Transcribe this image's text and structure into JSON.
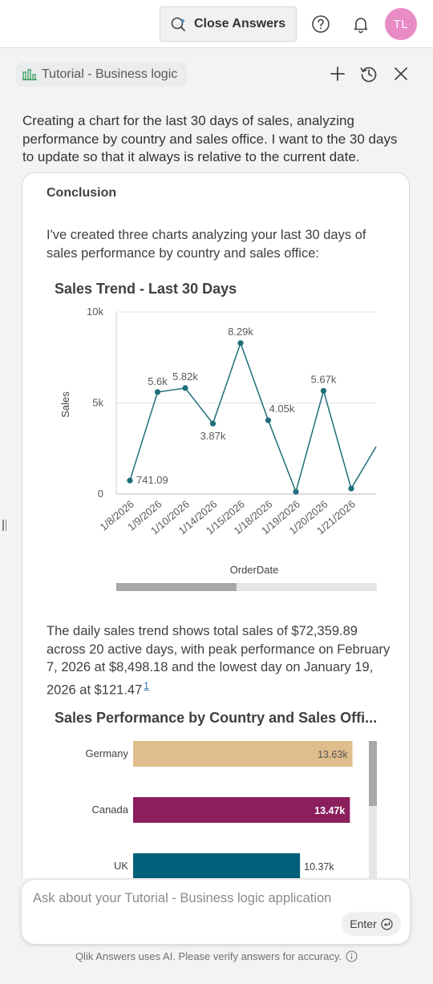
{
  "topbar": {
    "close_answers_label": "Close Answers",
    "avatar_initials": "TL"
  },
  "panel": {
    "app_name": "Tutorial - Business logic"
  },
  "conversation": {
    "question": "Creating a chart for the last 30 days of sales, analyzing performance by country and sales office. I want to the 30 days to update so that it always is relative to the current date.",
    "answer": {
      "heading": "Conclusion",
      "intro": "I've created three charts analyzing your last 30 days of sales performance by country and sales office:",
      "summary": "The daily sales trend shows total sales of $72,359.89 across 20 active days, with peak performance on February 7, 2026 at $8,498.18 and the lowest day on January 19, 2026 at $121.47",
      "footnote": "1"
    }
  },
  "chart_data": [
    {
      "type": "line",
      "title": "Sales Trend - Last 30 Days",
      "xlabel": "OrderDate",
      "ylabel": "Sales",
      "ylim": [
        0,
        10000
      ],
      "y_ticks": [
        "0",
        "5k",
        "10k"
      ],
      "grid": true,
      "color": "#1f6e7a",
      "categories": [
        "1/8/2026",
        "1/9/2026",
        "1/10/2026",
        "1/14/2026",
        "1/15/2026",
        "1/18/2026",
        "1/19/2026",
        "1/20/2026",
        "1/21/2026"
      ],
      "values": [
        741.09,
        5600,
        5820,
        3870,
        8290,
        4050,
        121.47,
        5670,
        300
      ],
      "data_labels": [
        "741.09",
        "5.6k",
        "5.82k",
        "3.87k",
        "8.29k",
        "4.05k",
        "",
        "5.67k",
        ""
      ],
      "continues_right": true,
      "next_value": 2600,
      "scroll_fraction": 0.46
    },
    {
      "type": "bar",
      "orientation": "horizontal",
      "title": "Sales Performance by Country and Sales Offi...",
      "categories": [
        "Germany",
        "Canada",
        "UK"
      ],
      "values": [
        13630,
        13470,
        10370
      ],
      "data_labels": [
        "13.63k",
        "13.47k",
        "10.37k"
      ],
      "colors": [
        "#e0bd8c",
        "#8a1f5c",
        "#00607a"
      ],
      "label_colors": [
        "#555555",
        "#ffffff",
        "#404040"
      ],
      "xlim": [
        0,
        13800
      ],
      "scroll_fraction": 0.22
    }
  ],
  "input": {
    "placeholder": "Ask about your Tutorial - Business logic application",
    "enter_label": "Enter"
  },
  "footer": {
    "disclaimer": "Qlik Answers uses AI. Please verify answers for accuracy."
  }
}
